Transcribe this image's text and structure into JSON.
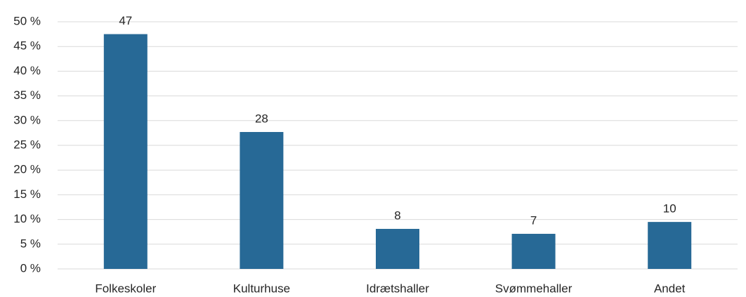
{
  "chart_data": {
    "type": "bar",
    "categories": [
      "Folkeskoler",
      "Kulturhuse",
      "Idrætshaller",
      "Svømmehaller",
      "Andet"
    ],
    "values": [
      47.5,
      27.7,
      8.1,
      7.1,
      9.5
    ],
    "value_labels": [
      "47",
      "28",
      "8",
      "7",
      "10"
    ],
    "color": "#276996",
    "ylim": [
      0,
      50
    ],
    "yticks": [
      {
        "value": 0,
        "label": "0 %"
      },
      {
        "value": 5,
        "label": "5 %"
      },
      {
        "value": 10,
        "label": "10 %"
      },
      {
        "value": 15,
        "label": "15 %"
      },
      {
        "value": 20,
        "label": "20 %"
      },
      {
        "value": 25,
        "label": "25 %"
      },
      {
        "value": 30,
        "label": "30 %"
      },
      {
        "value": 35,
        "label": "35 %"
      },
      {
        "value": 40,
        "label": "40 %"
      },
      {
        "value": 45,
        "label": "45 %"
      },
      {
        "value": 50,
        "label": "50 %"
      }
    ],
    "grid": true
  }
}
